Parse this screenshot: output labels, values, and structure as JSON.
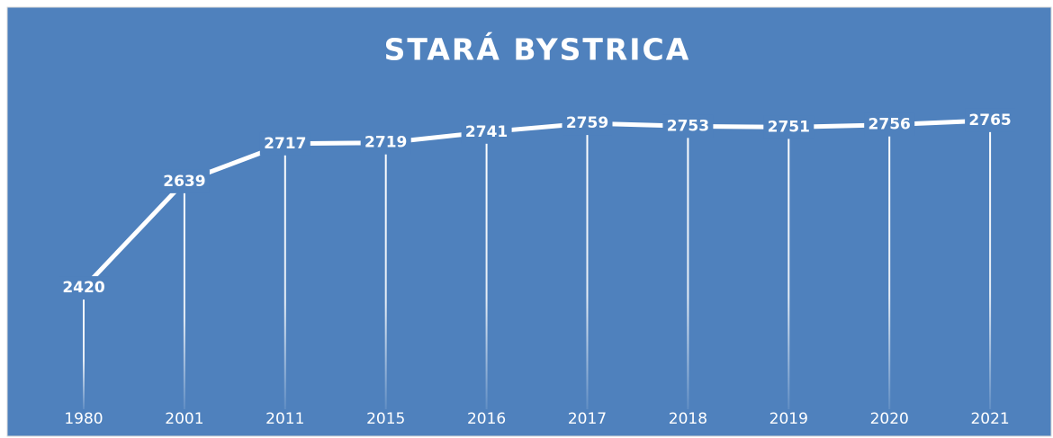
{
  "chart_data": {
    "type": "line",
    "title": "STARÁ BYSTRICA",
    "categories": [
      "1980",
      "2001",
      "2011",
      "2015",
      "2016",
      "2017",
      "2018",
      "2019",
      "2020",
      "2021"
    ],
    "values": [
      2420,
      2639,
      2717,
      2719,
      2741,
      2759,
      2753,
      2751,
      2756,
      2765
    ],
    "color": "#ffffff",
    "background": "#4f81bd",
    "ylim": [
      2170,
      2900
    ],
    "drop_lines": true
  }
}
